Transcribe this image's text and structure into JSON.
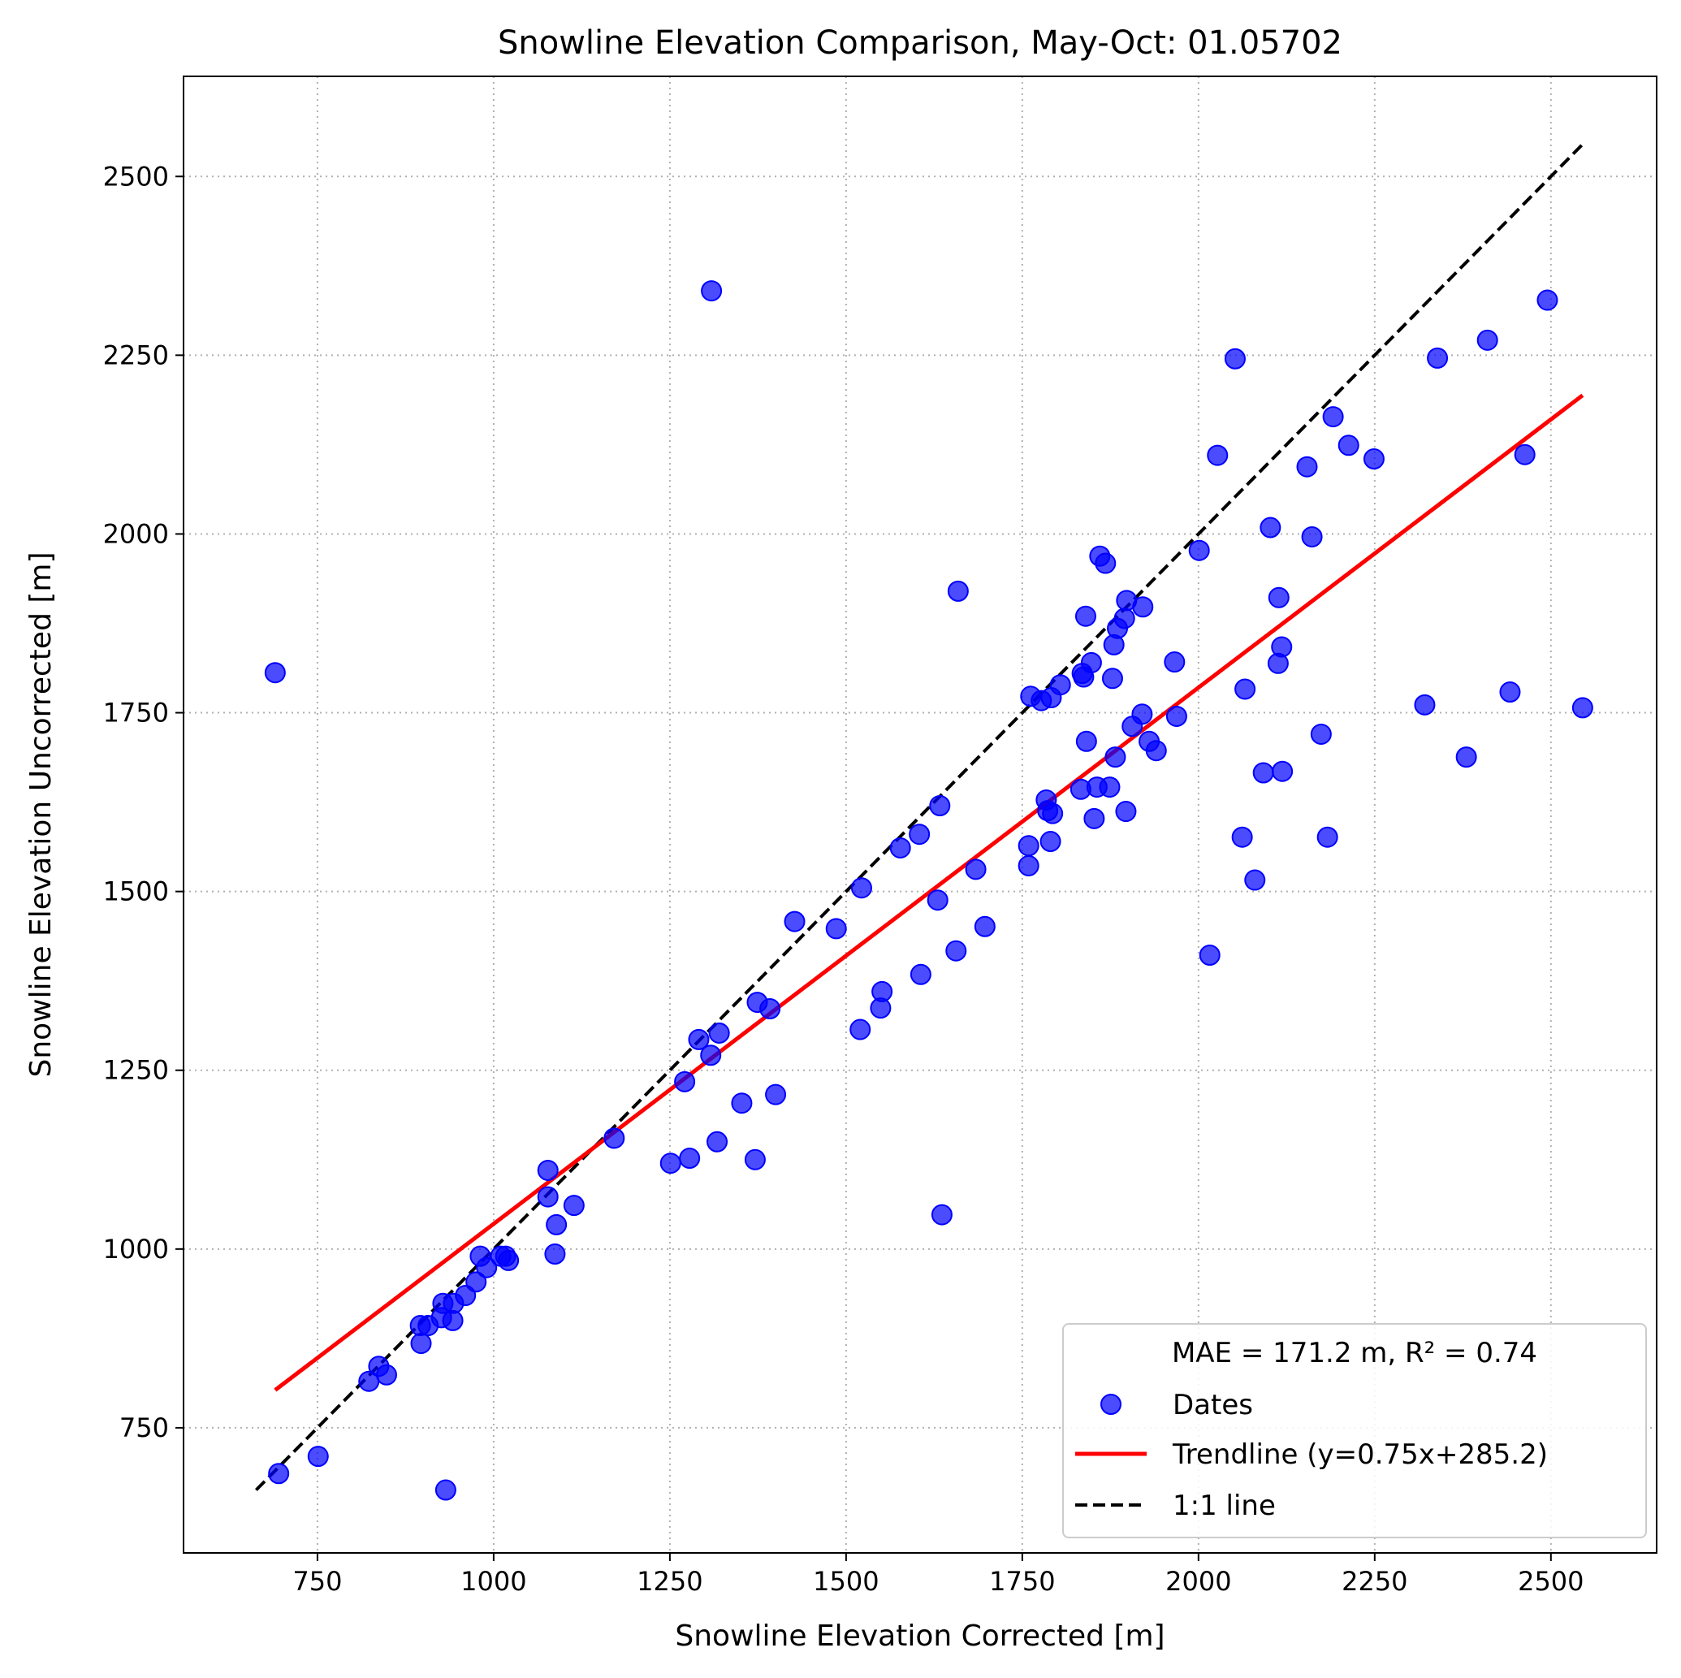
{
  "chart_data": {
    "type": "scatter",
    "title": "Snowline Elevation Comparison, May-Oct: 01.05702",
    "xlabel": "Snowline Elevation Corrected [m]",
    "ylabel": "Snowline Elevation Uncorrected [m]",
    "xlim": [
      560,
      2650
    ],
    "ylim": [
      575,
      2640
    ],
    "xticks": [
      750,
      1000,
      1250,
      1500,
      1750,
      2000,
      2250,
      2500
    ],
    "yticks": [
      750,
      1000,
      1250,
      1500,
      1750,
      2000,
      2250,
      2500
    ],
    "grid": true,
    "legend_position": "lower right",
    "legend_title": "MAE = 171.2 m,  R² = 0.74",
    "colors": {
      "points": "#0000ff",
      "trendline": "#ff0000",
      "identity": "#000000"
    },
    "series": [
      {
        "name": "Dates",
        "kind": "scatter",
        "points": [
          [
            695,
            686
          ],
          [
            751,
            710
          ],
          [
            690,
            1806
          ],
          [
            823,
            815
          ],
          [
            837,
            836
          ],
          [
            848,
            824
          ],
          [
            896,
            893
          ],
          [
            897,
            868
          ],
          [
            907,
            893
          ],
          [
            926,
            904
          ],
          [
            928,
            924
          ],
          [
            932,
            663
          ],
          [
            942,
            900
          ],
          [
            943,
            924
          ],
          [
            960,
            935
          ],
          [
            975,
            954
          ],
          [
            981,
            990
          ],
          [
            990,
            974
          ],
          [
            1010,
            990
          ],
          [
            1017,
            990
          ],
          [
            1021,
            984
          ],
          [
            1077,
            1110
          ],
          [
            1077,
            1073
          ],
          [
            1087,
            993
          ],
          [
            1089,
            1034
          ],
          [
            1114,
            1061
          ],
          [
            1171,
            1155
          ],
          [
            1251,
            1120
          ],
          [
            1271,
            1234
          ],
          [
            1278,
            1127
          ],
          [
            1291,
            1293
          ],
          [
            1308,
            1271
          ],
          [
            1309,
            2340
          ],
          [
            1317,
            1150
          ],
          [
            1320,
            1302
          ],
          [
            1352,
            1204
          ],
          [
            1371,
            1125
          ],
          [
            1374,
            1345
          ],
          [
            1392,
            1336
          ],
          [
            1400,
            1216
          ],
          [
            1427,
            1458
          ],
          [
            1486,
            1448
          ],
          [
            1520,
            1307
          ],
          [
            1522,
            1505
          ],
          [
            1549,
            1337
          ],
          [
            1551,
            1360
          ],
          [
            1577,
            1561
          ],
          [
            1604,
            1580
          ],
          [
            1606,
            1384
          ],
          [
            1630,
            1488
          ],
          [
            1633,
            1620
          ],
          [
            1636,
            1048
          ],
          [
            1656,
            1417
          ],
          [
            1659,
            1920
          ],
          [
            1684,
            1531
          ],
          [
            1697,
            1451
          ],
          [
            1759,
            1536
          ],
          [
            1759,
            1564
          ],
          [
            1762,
            1773
          ],
          [
            1777,
            1767
          ],
          [
            1784,
            1628
          ],
          [
            1786,
            1613
          ],
          [
            1790,
            1570
          ],
          [
            1791,
            1771
          ],
          [
            1793,
            1609
          ],
          [
            1804,
            1789
          ],
          [
            1833,
            1643
          ],
          [
            1835,
            1805
          ],
          [
            1837,
            1800
          ],
          [
            1840,
            1885
          ],
          [
            1841,
            1710
          ],
          [
            1848,
            1820
          ],
          [
            1852,
            1602
          ],
          [
            1856,
            1646
          ],
          [
            1860,
            1969
          ],
          [
            1868,
            1959
          ],
          [
            1874,
            1646
          ],
          [
            1878,
            1798
          ],
          [
            1880,
            1845
          ],
          [
            1882,
            1688
          ],
          [
            1885,
            1868
          ],
          [
            1895,
            1882
          ],
          [
            1897,
            1612
          ],
          [
            1898,
            1907
          ],
          [
            1906,
            1731
          ],
          [
            1920,
            1748
          ],
          [
            1921,
            1898
          ],
          [
            1930,
            1710
          ],
          [
            1940,
            1697
          ],
          [
            1966,
            1821
          ],
          [
            1969,
            1745
          ],
          [
            2001,
            1977
          ],
          [
            2016,
            1411
          ],
          [
            2027,
            2110
          ],
          [
            2052,
            2245
          ],
          [
            2062,
            1576
          ],
          [
            2066,
            1783
          ],
          [
            2080,
            1516
          ],
          [
            2092,
            1666
          ],
          [
            2102,
            2009
          ],
          [
            2113,
            1819
          ],
          [
            2114,
            1911
          ],
          [
            2118,
            1842
          ],
          [
            2119,
            1668
          ],
          [
            2154,
            2094
          ],
          [
            2161,
            1996
          ],
          [
            2174,
            1720
          ],
          [
            2183,
            1576
          ],
          [
            2191,
            2164
          ],
          [
            2213,
            2124
          ],
          [
            2249,
            2105
          ],
          [
            2321,
            1761
          ],
          [
            2339,
            2246
          ],
          [
            2380,
            1688
          ],
          [
            2410,
            2271
          ],
          [
            2442,
            1779
          ],
          [
            2463,
            2111
          ],
          [
            2495,
            2327
          ],
          [
            2545,
            1757
          ]
        ]
      },
      {
        "name": "Trendline (y=0.75x+285.2)",
        "kind": "line",
        "slope": 0.75,
        "intercept": 285.2,
        "x_range": [
          690,
          2545
        ]
      },
      {
        "name": "1:1 line",
        "kind": "identity",
        "x_range": [
          663,
          2545
        ]
      }
    ]
  }
}
